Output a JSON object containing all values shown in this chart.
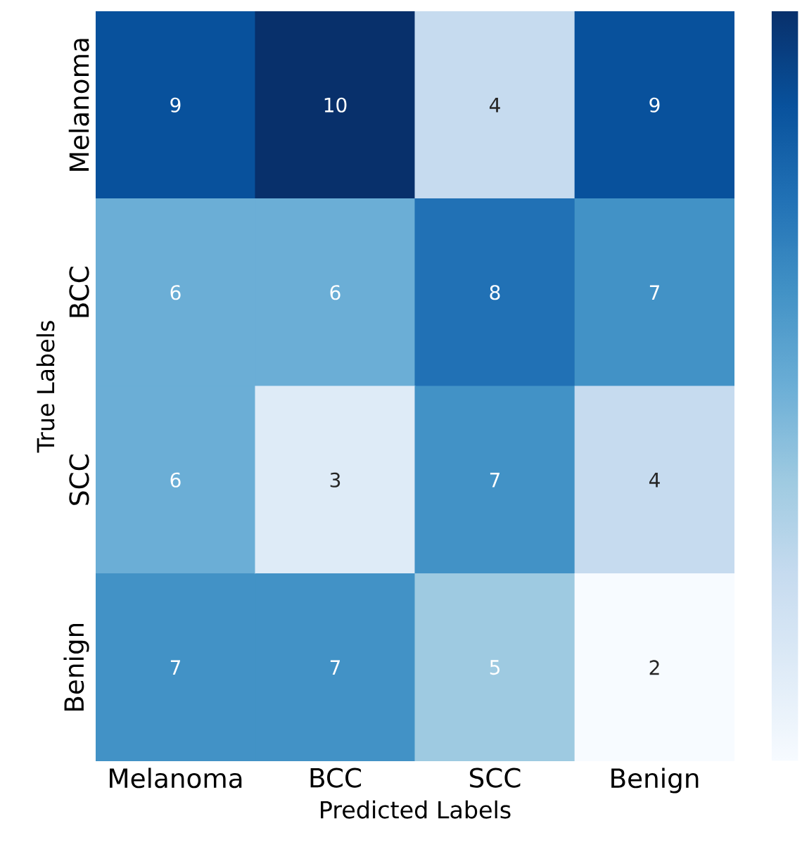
{
  "chart_data": {
    "type": "heatmap",
    "data_labels": true,
    "xlabel": "Predicted Labels",
    "ylabel": "True Labels",
    "categories": [
      "Melanoma",
      "BCC",
      "SCC",
      "Benign"
    ],
    "y_categories": [
      "Melanoma",
      "BCC",
      "SCC",
      "Benign"
    ],
    "cells": [
      [
        9,
        10,
        4,
        9
      ],
      [
        6,
        6,
        8,
        7
      ],
      [
        6,
        3,
        7,
        4
      ],
      [
        7,
        7,
        5,
        2
      ]
    ]
  }
}
